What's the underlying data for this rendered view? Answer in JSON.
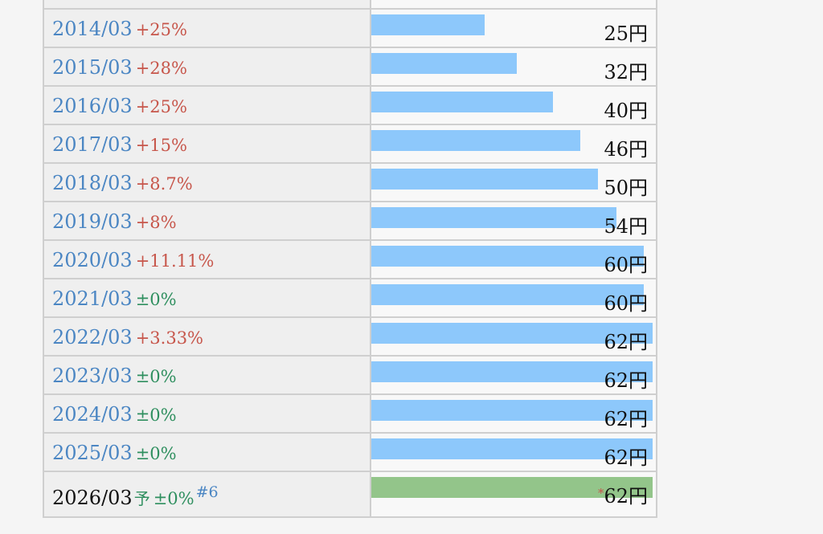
{
  "rows": [
    {
      "year": "2014/03",
      "change": "+25%",
      "change_type": "pos",
      "value": "25円",
      "amount": 25
    },
    {
      "year": "2015/03",
      "change": "+28%",
      "change_type": "pos",
      "value": "32円",
      "amount": 32
    },
    {
      "year": "2016/03",
      "change": "+25%",
      "change_type": "pos",
      "value": "40円",
      "amount": 40
    },
    {
      "year": "2017/03",
      "change": "+15%",
      "change_type": "pos",
      "value": "46円",
      "amount": 46
    },
    {
      "year": "2018/03",
      "change": "+8.7%",
      "change_type": "pos",
      "value": "50円",
      "amount": 50
    },
    {
      "year": "2019/03",
      "change": "+8%",
      "change_type": "pos",
      "value": "54円",
      "amount": 54
    },
    {
      "year": "2020/03",
      "change": "+11.11%",
      "change_type": "pos",
      "value": "60円",
      "amount": 60
    },
    {
      "year": "2021/03",
      "change": "±0%",
      "change_type": "flat",
      "value": "60円",
      "amount": 60
    },
    {
      "year": "2022/03",
      "change": "+3.33%",
      "change_type": "pos",
      "value": "62円",
      "amount": 62
    },
    {
      "year": "2023/03",
      "change": "±0%",
      "change_type": "flat",
      "value": "62円",
      "amount": 62
    },
    {
      "year": "2024/03",
      "change": "±0%",
      "change_type": "flat",
      "value": "62円",
      "amount": 62
    },
    {
      "year": "2025/03",
      "change": "±0%",
      "change_type": "flat",
      "value": "62円",
      "amount": 62
    }
  ],
  "forecast": {
    "year": "2026/03",
    "forecast_mark": "予",
    "change": "±0%",
    "note": "#6",
    "star": "*",
    "value": "62円",
    "amount": 62
  },
  "colors": {
    "bar": "#8dc8fb",
    "forecast_bar": "#93c58a",
    "positive": "#c7564b",
    "flat": "#2f8f5f",
    "year_link": "#4b86c3"
  }
}
